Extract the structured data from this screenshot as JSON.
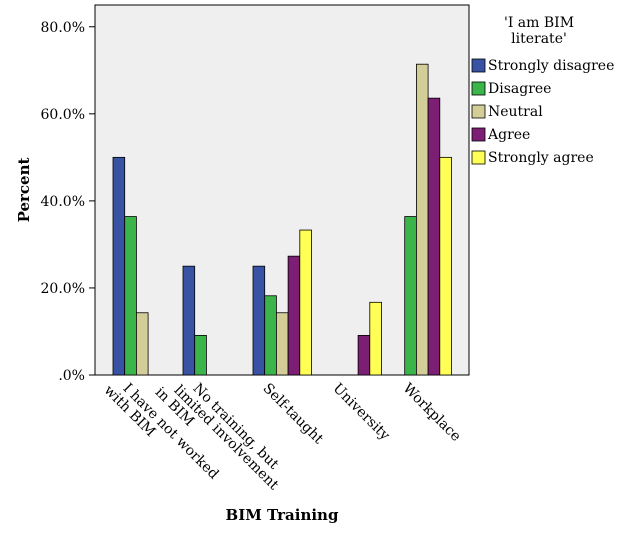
{
  "chart_data": {
    "type": "bar",
    "xlabel": "BIM Training",
    "ylabel": "Percent",
    "ylim": [
      0,
      85
    ],
    "yticks": [
      ".0%",
      "20.0%",
      "40.0%",
      "60.0%",
      "80.0%"
    ],
    "ytick_values": [
      0,
      20,
      40,
      60,
      80
    ],
    "categories": [
      "I have not worked with BIM",
      "No training, but limited involvement in BIM",
      "Self-taught",
      "University",
      "Workplace"
    ],
    "legend_title": "'I am BIM literate'",
    "legend_position": "top-right",
    "grid": false,
    "series": [
      {
        "name": "Strongly disagree",
        "color": "#3953a4",
        "values": [
          50.0,
          25.0,
          25.0,
          0.0,
          0.0
        ]
      },
      {
        "name": "Disagree",
        "color": "#3bb54a",
        "values": [
          36.4,
          9.1,
          18.2,
          0.0,
          36.4
        ]
      },
      {
        "name": "Neutral",
        "color": "#d3cd97",
        "values": [
          14.3,
          0.0,
          14.3,
          0.0,
          71.4
        ]
      },
      {
        "name": "Agree",
        "color": "#7c1f74",
        "values": [
          0.0,
          0.0,
          27.3,
          9.1,
          63.6
        ]
      },
      {
        "name": "Strongly agree",
        "color": "#ffff56",
        "values": [
          0.0,
          0.0,
          33.3,
          16.7,
          50.0
        ]
      }
    ]
  }
}
